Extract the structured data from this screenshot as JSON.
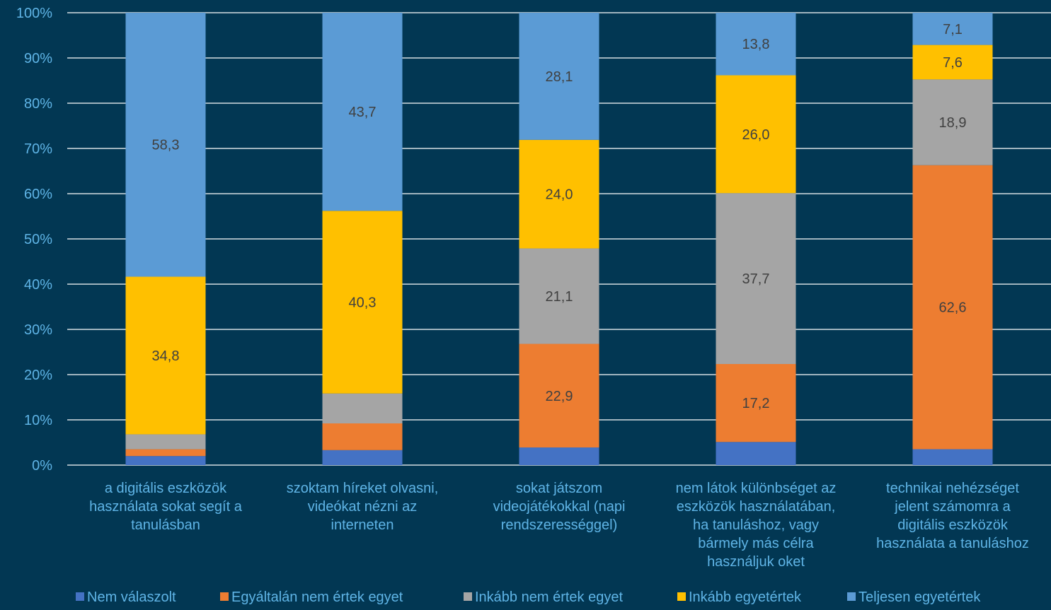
{
  "chart_data": {
    "type": "bar",
    "stacked": true,
    "percent_stacked": true,
    "ylim": [
      0,
      100
    ],
    "y_ticks": [
      "0%",
      "10%",
      "20%",
      "30%",
      "40%",
      "50%",
      "60%",
      "70%",
      "80%",
      "90%",
      "100%"
    ],
    "grid": true,
    "legend_position": "bottom",
    "categories": [
      [
        "a digitális eszközök",
        "használata sokat segít a",
        "tanulásban"
      ],
      [
        "szoktam híreket olvasni,",
        "videókat nézni az",
        "interneten"
      ],
      [
        "sokat játszom",
        "videojátékokkal (napi",
        "rendszerességgel)"
      ],
      [
        "nem látok különbséget az",
        "eszközök használatában,",
        "ha tanuláshoz, vagy",
        "bármely más célra",
        "használjuk oket"
      ],
      [
        "technikai nehézséget",
        "jelent számomra a",
        "digitális eszközök",
        "használata a tanuláshoz"
      ]
    ],
    "series": [
      {
        "name": "Nem válaszolt",
        "color": "#4472c4",
        "values": [
          2.0,
          3.3,
          3.9,
          5.1,
          3.5
        ],
        "labels": [
          "",
          "",
          "",
          "",
          ""
        ]
      },
      {
        "name": "Egyáltalán nem értek egyet",
        "color": "#ed7d31",
        "values": [
          1.5,
          5.9,
          22.9,
          17.2,
          62.6
        ],
        "labels": [
          "",
          "",
          "22,9",
          "17,2",
          "62,6"
        ]
      },
      {
        "name": "Inkább nem értek egyet",
        "color": "#a5a5a5",
        "values": [
          3.3,
          6.6,
          21.1,
          37.7,
          18.9
        ],
        "labels": [
          "",
          "",
          "21,1",
          "37,7",
          "18,9"
        ]
      },
      {
        "name": "Inkább egyetértek",
        "color": "#ffc000",
        "values": [
          34.8,
          40.3,
          24.0,
          26.0,
          7.6
        ],
        "labels": [
          "34,8",
          "40,3",
          "24,0",
          "26,0",
          "7,6"
        ]
      },
      {
        "name": "Teljesen egyetértek",
        "color": "#5b9bd5",
        "values": [
          58.3,
          43.7,
          28.1,
          13.8,
          7.1
        ],
        "labels": [
          "58,3",
          "43,7",
          "28,1",
          "13,8",
          "7,1"
        ]
      }
    ]
  }
}
